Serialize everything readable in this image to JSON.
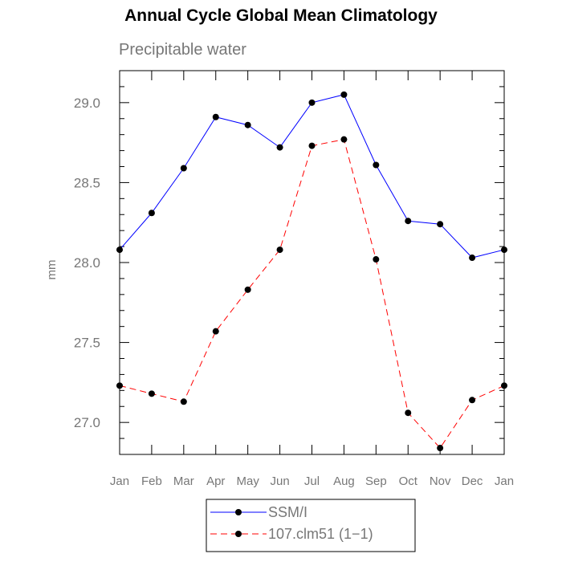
{
  "chart_data": {
    "type": "line",
    "title": "Annual Cycle Global Mean Climatology",
    "subtitle": "Precipitable water",
    "ylabel": "mm",
    "xlabel": "",
    "categories": [
      "Jan",
      "Feb",
      "Mar",
      "Apr",
      "May",
      "Jun",
      "Jul",
      "Aug",
      "Sep",
      "Oct",
      "Nov",
      "Dec",
      "Jan"
    ],
    "ylim": [
      26.8,
      29.2
    ],
    "yticks": [
      "27.0",
      "27.5",
      "28.0",
      "28.5",
      "29.0"
    ],
    "grid": false,
    "legend_position": "bottom",
    "series": [
      {
        "name": "SSM/I",
        "color": "#0000ff",
        "dash": "solid",
        "values": [
          28.08,
          28.31,
          28.59,
          28.91,
          28.86,
          28.72,
          29.0,
          29.05,
          28.61,
          28.26,
          28.24,
          28.03,
          28.08
        ]
      },
      {
        "name": "107.clm51 (1−1)",
        "color": "#ff0000",
        "dash": "dashed",
        "values": [
          27.23,
          27.18,
          27.13,
          27.57,
          27.83,
          28.08,
          28.73,
          28.77,
          28.02,
          27.06,
          26.84,
          27.14,
          27.23
        ]
      }
    ]
  }
}
